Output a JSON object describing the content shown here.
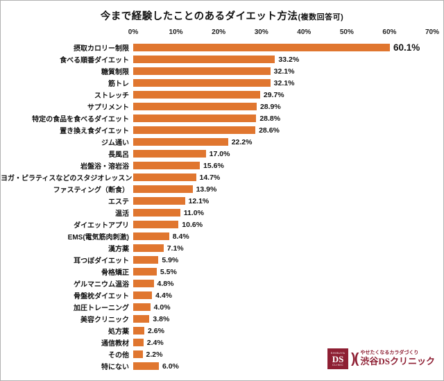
{
  "title": {
    "main": "今まで経験したことのあるダイエット方法",
    "note": "(複数回答可)"
  },
  "chart_data": {
    "type": "bar",
    "orientation": "horizontal",
    "title": "今まで経験したことのあるダイエット方法(複数回答可)",
    "xlabel": "",
    "ylabel": "",
    "xlim": [
      0,
      70
    ],
    "axis_ticks": [
      "0%",
      "10%",
      "20%",
      "30%",
      "40%",
      "50%",
      "60%",
      "70%"
    ],
    "grid": false,
    "bar_color": "#E0762F",
    "highlight_index": 0,
    "categories": [
      "摂取カロリー制限",
      "食べる順番ダイエット",
      "糖質制限",
      "筋トレ",
      "ストレッチ",
      "サプリメント",
      "特定の食品を食べるダイエット",
      "置き換え食ダイエット",
      "ジム通い",
      "長風呂",
      "岩盤浴・溶岩浴",
      "ヨガ・ピラティスなどのスタジオレッスン",
      "ファスティング（断食）",
      "エステ",
      "温活",
      "ダイエットアプリ",
      "EMS(電気筋肉刺激)",
      "漢方薬",
      "耳つぼダイエット",
      "骨格矯正",
      "ゲルマニウム温浴",
      "骨盤枕ダイエット",
      "加圧トレーニング",
      "美容クリニック",
      "処方薬",
      "通信教材",
      "その他",
      "特にない"
    ],
    "values": [
      60.1,
      33.2,
      32.1,
      32.1,
      29.7,
      28.9,
      28.8,
      28.6,
      22.2,
      17.0,
      15.6,
      14.7,
      13.9,
      12.1,
      11.0,
      10.6,
      8.4,
      7.1,
      5.9,
      5.5,
      4.8,
      4.4,
      4.0,
      3.8,
      2.6,
      2.4,
      2.2,
      6.0
    ],
    "value_labels": [
      "60.1%",
      "33.2%",
      "32.1%",
      "32.1%",
      "29.7%",
      "28.9%",
      "28.8%",
      "28.6%",
      "22.2%",
      "17.0%",
      "15.6%",
      "14.7%",
      "13.9%",
      "12.1%",
      "11.0%",
      "10.6%",
      "8.4%",
      "7.1%",
      "5.9%",
      "5.5%",
      "4.8%",
      "4.4%",
      "4.0%",
      "3.8%",
      "2.6%",
      "2.4%",
      "2.2%",
      "6.0%"
    ]
  },
  "logo": {
    "color": "#8E1F33",
    "emblem_top": "SHIBUYA",
    "emblem_main": "DS",
    "emblem_bottom": "CLINIC",
    "paren": ")(",
    "tagline": "やせたくなるカラダづくり",
    "name": "渋谷DSクリニック"
  }
}
